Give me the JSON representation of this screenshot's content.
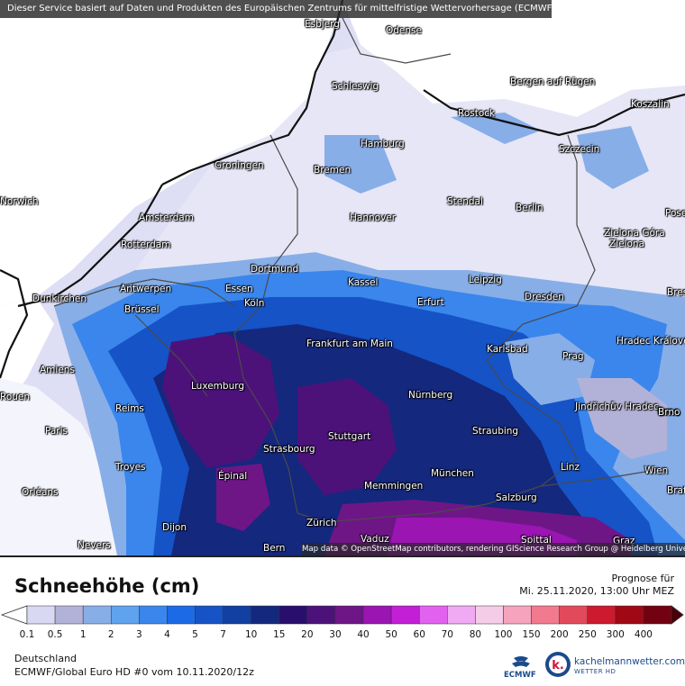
{
  "banner_text": "Dieser Service basiert auf Daten und Produkten des Europäischen Zentrums für mittelfristige Wettervorhersage (ECMWF)",
  "attribution": "Map data © OpenStreetMap contributors, rendering GIScience Research Group @ Heidelberg University",
  "title": "Schneehöhe (cm)",
  "forecast_label": "Prognose für",
  "forecast_date": "Mi. 25.11.2020, 13:00 Uhr MEZ",
  "region": "Deutschland",
  "model_run": "ECMWF/Global Euro HD #0 vom  10.11.2020/12z",
  "ecmwf_logo_text": "ECMWF",
  "brand_name": "kachelmannwetter.com",
  "brand_sub": "WETTER HD",
  "legend": {
    "ticks": [
      "0.1",
      "0.5",
      "1",
      "2",
      "3",
      "4",
      "5",
      "7",
      "10",
      "15",
      "20",
      "30",
      "40",
      "50",
      "60",
      "70",
      "80",
      "100",
      "150",
      "200",
      "250",
      "300",
      "400"
    ],
    "colors": [
      "#ffffff",
      "#d8d8f2",
      "#b2b2d8",
      "#88aee8",
      "#5fa2ee",
      "#3a86ec",
      "#1c6ae6",
      "#1553c6",
      "#123fa2",
      "#14287e",
      "#2a0e6e",
      "#4c127a",
      "#6f1687",
      "#9a15b2",
      "#c21fd6",
      "#e262f0",
      "#f0a9f3",
      "#f5cce8",
      "#f6a4be",
      "#f27a8e",
      "#e24a5c",
      "#cc1a2e",
      "#a00816",
      "#730210",
      "#4a0008"
    ]
  },
  "cities": [
    {
      "name": "Esbjerg"
    },
    {
      "name": "Odense"
    },
    {
      "name": "Schleswig"
    },
    {
      "name": "Bergen auf Rügen"
    },
    {
      "name": "Rostock"
    },
    {
      "name": "Koszalin"
    },
    {
      "name": "Hamburg"
    },
    {
      "name": "Szczecin"
    },
    {
      "name": "Groningen"
    },
    {
      "name": "Bremen"
    },
    {
      "name": "Stendal"
    },
    {
      "name": "Berlin"
    },
    {
      "name": "Amsterdam"
    },
    {
      "name": "Hannover"
    },
    {
      "name": "Rotterdam"
    },
    {
      "name": "Zielona Góra"
    },
    {
      "name": "Dortmund"
    },
    {
      "name": "Antwerpen"
    },
    {
      "name": "Essen"
    },
    {
      "name": "Kassel"
    },
    {
      "name": "Leipzig"
    },
    {
      "name": "Dunkirchen"
    },
    {
      "name": "Köln"
    },
    {
      "name": "Erfurt"
    },
    {
      "name": "Dresden"
    },
    {
      "name": "Brüssel"
    },
    {
      "name": "Frankfurt am Main"
    },
    {
      "name": "Karlsbad"
    },
    {
      "name": "Hradec Králové"
    },
    {
      "name": "Amiens"
    },
    {
      "name": "Prag"
    },
    {
      "name": "Luxemburg"
    },
    {
      "name": "Nürnberg"
    },
    {
      "name": "Jindřichův Hradec"
    },
    {
      "name": "Reims"
    },
    {
      "name": "Brno"
    },
    {
      "name": "Paris"
    },
    {
      "name": "Stuttgart"
    },
    {
      "name": "Straubing"
    },
    {
      "name": "Strasbourg"
    },
    {
      "name": "Troyes"
    },
    {
      "name": "München"
    },
    {
      "name": "Linz"
    },
    {
      "name": "Wien"
    },
    {
      "name": "Épinal"
    },
    {
      "name": "Memmingen"
    },
    {
      "name": "Orléans"
    },
    {
      "name": "Salzburg"
    },
    {
      "name": "Zürich"
    },
    {
      "name": "Dijon"
    },
    {
      "name": "Vaduz"
    },
    {
      "name": "Spittal"
    },
    {
      "name": "Nevers"
    },
    {
      "name": "Bern"
    },
    {
      "name": "Graz"
    },
    {
      "name": "Brno"
    },
    {
      "name": "Rouen"
    },
    {
      "name": "Posen"
    },
    {
      "name": "Breslau"
    },
    {
      "name": "Bratislava"
    },
    {
      "name": "Norwich"
    },
    {
      "name": "Zielona"
    }
  ]
}
